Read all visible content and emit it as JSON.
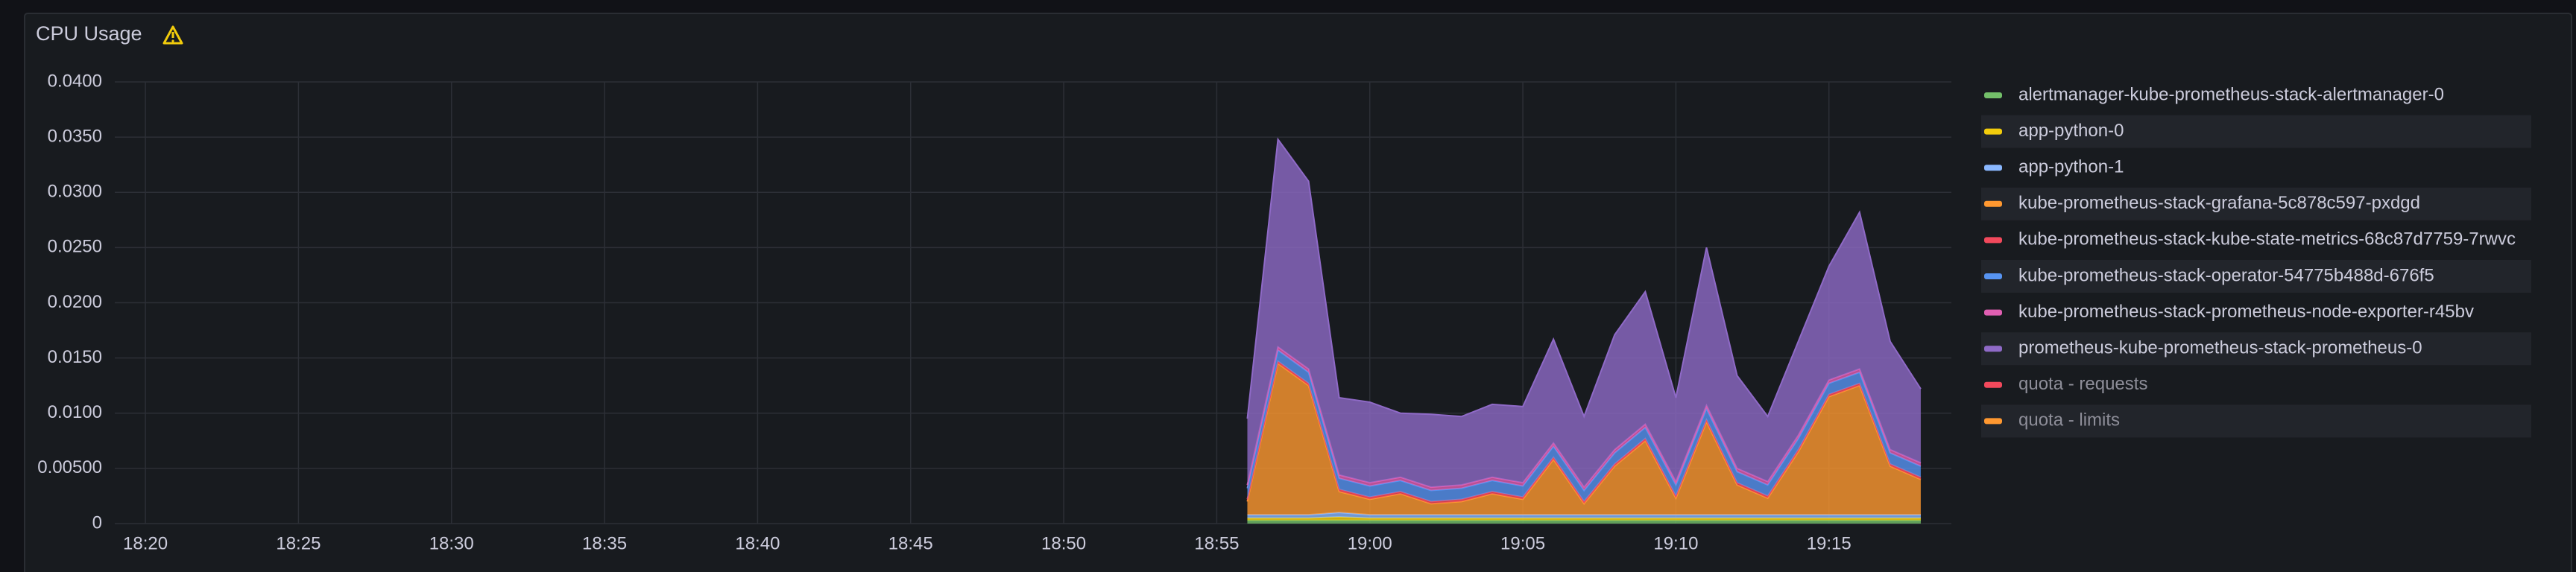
{
  "chart_data": {
    "type": "area",
    "stacked": true,
    "title": "CPU Usage",
    "x": [
      "18:56",
      "18:57",
      "18:58",
      "18:59",
      "19:00",
      "19:01",
      "19:02",
      "19:03",
      "19:04",
      "19:05",
      "19:06",
      "19:07",
      "19:08",
      "19:09",
      "19:10",
      "19:11",
      "19:12",
      "19:13",
      "19:14",
      "19:15",
      "19:16",
      "19:17",
      "19:18"
    ],
    "xlim": [
      "18:19",
      "19:19"
    ],
    "xticks": [
      "18:20",
      "18:25",
      "18:30",
      "18:35",
      "18:40",
      "18:45",
      "18:50",
      "18:55",
      "19:00",
      "19:05",
      "19:10",
      "19:15"
    ],
    "ylim": [
      0,
      0.04
    ],
    "yticks": [
      0,
      {
        "value": 0.005,
        "label": "0.00500"
      },
      {
        "value": 0.01,
        "label": "0.0100"
      },
      {
        "value": 0.015,
        "label": "0.0150"
      },
      {
        "value": 0.02,
        "label": "0.0200"
      },
      {
        "value": 0.025,
        "label": "0.0250"
      },
      {
        "value": 0.03,
        "label": "0.0300"
      },
      {
        "value": 0.035,
        "label": "0.0350"
      },
      {
        "value": 0.04,
        "label": "0.0400"
      }
    ],
    "grid": true,
    "legend": "right",
    "series": [
      {
        "name": "alertmanager-kube-prometheus-stack-alertmanager-0",
        "color": "#73bf69",
        "values": [
          0.0003,
          0.0003,
          0.0003,
          0.0003,
          0.0003,
          0.0003,
          0.0003,
          0.0003,
          0.0003,
          0.0003,
          0.0003,
          0.0003,
          0.0003,
          0.0003,
          0.0003,
          0.0003,
          0.0003,
          0.0003,
          0.0003,
          0.0003,
          0.0003,
          0.0003,
          0.0003
        ]
      },
      {
        "name": "app-python-0",
        "color": "#f2cc0c",
        "values": [
          0.0002,
          0.0002,
          0.0002,
          0.0003,
          0.0002,
          0.0002,
          0.0002,
          0.0002,
          0.0002,
          0.0002,
          0.0002,
          0.0002,
          0.0002,
          0.0002,
          0.0002,
          0.0002,
          0.0002,
          0.0002,
          0.0002,
          0.0002,
          0.0002,
          0.0002,
          0.0002
        ]
      },
      {
        "name": "app-python-1",
        "color": "#8ab8ff",
        "values": [
          0.0003,
          0.0003,
          0.0003,
          0.0004,
          0.0003,
          0.0003,
          0.0003,
          0.0003,
          0.0003,
          0.0003,
          0.0003,
          0.0003,
          0.0003,
          0.0003,
          0.0003,
          0.0003,
          0.0003,
          0.0003,
          0.0003,
          0.0003,
          0.0003,
          0.0003,
          0.0003
        ]
      },
      {
        "name": "kube-prometheus-stack-grafana-5c878c597-pxdgd",
        "color": "#ff9830",
        "values": [
          0.0012,
          0.0137,
          0.0117,
          0.0019,
          0.0014,
          0.0019,
          0.001,
          0.0012,
          0.0019,
          0.0014,
          0.005,
          0.001,
          0.0044,
          0.0067,
          0.0015,
          0.0084,
          0.0027,
          0.0015,
          0.0057,
          0.0107,
          0.0117,
          0.0044,
          0.0032
        ]
      },
      {
        "name": "kube-prometheus-stack-kube-state-metrics-68c87d7759-7rwvc",
        "color": "#f2495c",
        "values": [
          0.0002,
          0.0002,
          0.0002,
          0.0002,
          0.0002,
          0.0002,
          0.0002,
          0.0002,
          0.0002,
          0.0002,
          0.0002,
          0.0002,
          0.0002,
          0.0002,
          0.0002,
          0.0002,
          0.0002,
          0.0002,
          0.0002,
          0.0002,
          0.0002,
          0.0002,
          0.0002
        ]
      },
      {
        "name": "kube-prometheus-stack-operator-54775b488d-676f5",
        "color": "#5794f2",
        "values": [
          0.001,
          0.001,
          0.001,
          0.001,
          0.001,
          0.001,
          0.001,
          0.001,
          0.001,
          0.001,
          0.001,
          0.001,
          0.001,
          0.001,
          0.001,
          0.001,
          0.001,
          0.001,
          0.001,
          0.001,
          0.001,
          0.001,
          0.001
        ]
      },
      {
        "name": "kube-prometheus-stack-prometheus-node-exporter-r45bv",
        "color": "#e05fb2",
        "values": [
          0.0003,
          0.0003,
          0.0003,
          0.0003,
          0.0003,
          0.0003,
          0.0003,
          0.0003,
          0.0003,
          0.0003,
          0.0003,
          0.0003,
          0.0003,
          0.0003,
          0.0003,
          0.0003,
          0.0003,
          0.0003,
          0.0003,
          0.0003,
          0.0003,
          0.0003,
          0.0003
        ]
      },
      {
        "name": "prometheus-kube-prometheus-stack-prometheus-0",
        "color": "#8f6ac7",
        "values": [
          0.006,
          0.0188,
          0.017,
          0.007,
          0.0073,
          0.0058,
          0.0066,
          0.0062,
          0.0066,
          0.0069,
          0.0094,
          0.0064,
          0.0104,
          0.012,
          0.0076,
          0.0143,
          0.0084,
          0.0059,
          0.0085,
          0.0103,
          0.0142,
          0.0098,
          0.0067
        ]
      },
      {
        "name": "quota - requests",
        "color": "#f2495c",
        "hidden": true,
        "values": [
          null,
          null,
          null,
          null,
          null,
          null,
          null,
          null,
          null,
          null,
          null,
          null,
          null,
          null,
          null,
          null,
          null,
          null,
          null,
          null,
          null,
          null,
          null
        ]
      },
      {
        "name": "quota - limits",
        "color": "#ff9830",
        "hidden": true,
        "values": [
          null,
          null,
          null,
          null,
          null,
          null,
          null,
          null,
          null,
          null,
          null,
          null,
          null,
          null,
          null,
          null,
          null,
          null,
          null,
          null,
          null,
          null,
          null
        ]
      }
    ]
  }
}
